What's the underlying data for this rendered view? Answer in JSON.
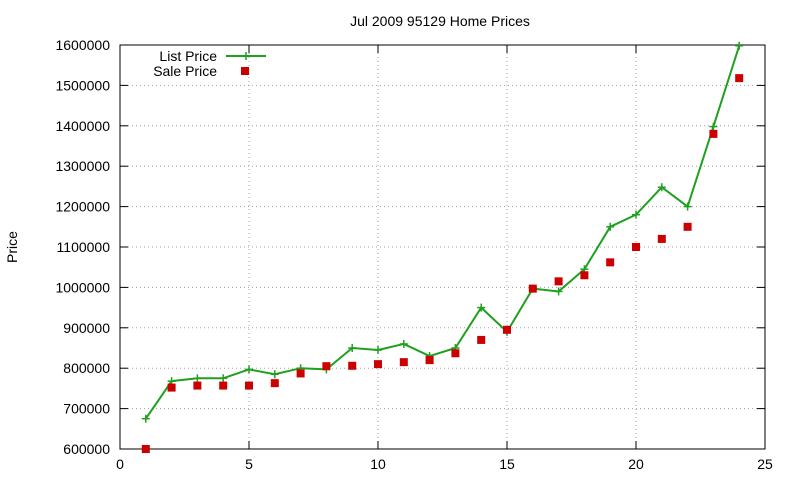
{
  "chart_data": {
    "type": "line",
    "title": "Jul 2009 95129 Home Prices",
    "xlabel": "",
    "ylabel": "Price",
    "xlim": [
      0,
      25
    ],
    "ylim": [
      600000,
      1600000
    ],
    "xticks": [
      0,
      5,
      10,
      15,
      20,
      25
    ],
    "yticks": [
      600000,
      700000,
      800000,
      900000,
      1000000,
      1100000,
      1200000,
      1300000,
      1400000,
      1500000,
      1600000
    ],
    "grid": true,
    "legend_position": "top-left",
    "x": [
      1,
      2,
      3,
      4,
      5,
      6,
      7,
      8,
      9,
      10,
      11,
      12,
      13,
      14,
      15,
      16,
      17,
      18,
      19,
      20,
      21,
      22,
      23,
      24
    ],
    "series": [
      {
        "name": "List Price",
        "style": "line-plus",
        "color": "#1fa01f",
        "values": [
          675000,
          768000,
          775000,
          775000,
          797000,
          785000,
          800000,
          797000,
          850000,
          845000,
          860000,
          830000,
          850000,
          950000,
          890000,
          997000,
          990000,
          1045000,
          1150000,
          1180000,
          1248000,
          1200000,
          1398000,
          1598000
        ]
      },
      {
        "name": "Sale Price",
        "style": "square-markers",
        "color": "#cc0000",
        "values": [
          600000,
          752000,
          757000,
          757000,
          757000,
          763000,
          787000,
          805000,
          806000,
          810000,
          815000,
          820000,
          837000,
          870000,
          895000,
          997000,
          1015000,
          1030000,
          1062000,
          1100000,
          1120000,
          1150000,
          1380000,
          1518000
        ]
      }
    ]
  }
}
